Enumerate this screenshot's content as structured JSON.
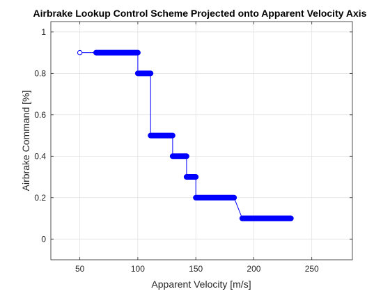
{
  "chart_data": {
    "type": "line",
    "title": "Airbrake Lookup Control Scheme Projected onto Apparent Velocity Axis",
    "xlabel": "Apparent Velocity [m/s]",
    "ylabel": "Airbrake Command [%]",
    "xlim": [
      25,
      285
    ],
    "ylim": [
      -0.1,
      1.05
    ],
    "xticks": [
      50,
      100,
      150,
      200,
      250
    ],
    "yticks": [
      0,
      0.2,
      0.4,
      0.6,
      0.8,
      1
    ],
    "xtick_labels": [
      "50",
      "100",
      "150",
      "200",
      "250"
    ],
    "ytick_labels": [
      "0",
      "0.2",
      "0.4",
      "0.6",
      "0.8",
      "1"
    ],
    "grid": true,
    "line_color": "#0000ff",
    "marker": "open-circle",
    "series": [
      {
        "segments": [
          {
            "y": 0.9,
            "x_start": 64,
            "x_end": 100
          },
          {
            "y": 0.8,
            "x_start": 100,
            "x_end": 111
          },
          {
            "y": 0.5,
            "x_start": 111,
            "x_end": 130
          },
          {
            "y": 0.4,
            "x_start": 130,
            "x_end": 142
          },
          {
            "y": 0.3,
            "x_start": 142,
            "x_end": 150
          },
          {
            "y": 0.2,
            "x_start": 150,
            "x_end": 183
          },
          {
            "y": 0.1,
            "x_start": 190,
            "x_end": 232
          }
        ],
        "start_point": {
          "x": 50,
          "y": 0.9
        }
      }
    ]
  }
}
